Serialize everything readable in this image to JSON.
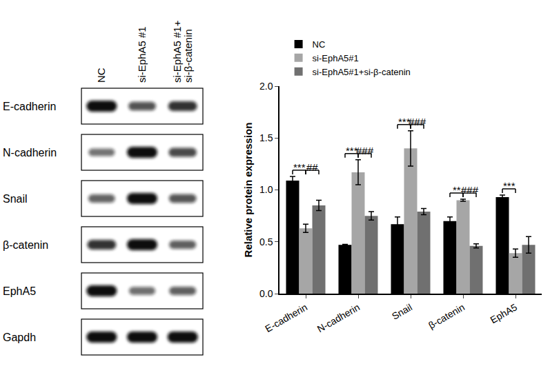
{
  "chart_data": {
    "type": "bar",
    "categories": [
      "E-cadherin",
      "N-cadherin",
      "Snail",
      "β-catenin",
      "EphA5"
    ],
    "series": [
      {
        "name": "NC",
        "color": "#000000",
        "values": [
          1.09,
          0.47,
          0.67,
          0.7,
          0.93
        ],
        "errors": [
          0.04,
          0.005,
          0.07,
          0.04,
          0.02
        ]
      },
      {
        "name": "si-EphA5#1",
        "color": "#a6a6a6",
        "values": [
          0.63,
          1.17,
          1.4,
          0.9,
          0.39
        ],
        "errors": [
          0.04,
          0.12,
          0.17,
          0.01,
          0.04
        ]
      },
      {
        "name": "si-EphA5#1+si-β-catenin",
        "color": "#707070",
        "values": [
          0.85,
          0.75,
          0.79,
          0.46,
          0.47
        ],
        "errors": [
          0.05,
          0.04,
          0.03,
          0.02,
          0.08
        ]
      }
    ],
    "y_label": "Relative protein expression",
    "ylim": [
      0,
      2
    ],
    "yticks": [
      {
        "value": 0,
        "label": "0.0"
      },
      {
        "value": 0.5,
        "label": "0.5"
      },
      {
        "value": 1,
        "label": "1.0"
      },
      {
        "value": 1.5,
        "label": "1.5"
      },
      {
        "value": 2,
        "label": "2.0"
      }
    ],
    "grid": false,
    "legend": "upper left",
    "annotations": [
      {
        "category": "E-cadherin",
        "text": "***",
        "between": [
          "NC",
          "si-EphA5#1"
        ]
      },
      {
        "category": "E-cadherin",
        "text": "##",
        "between": [
          "si-EphA5#1",
          "si-EphA5#1+si-β-catenin"
        ]
      },
      {
        "category": "N-cadherin",
        "text": "***",
        "between": [
          "NC",
          "si-EphA5#1"
        ]
      },
      {
        "category": "N-cadherin",
        "text": "###",
        "between": [
          "si-EphA5#1",
          "si-EphA5#1+si-β-catenin"
        ]
      },
      {
        "category": "Snail",
        "text": "***",
        "between": [
          "NC",
          "si-EphA5#1"
        ]
      },
      {
        "category": "Snail",
        "text": "###",
        "between": [
          "si-EphA5#1",
          "si-EphA5#1+si-β-catenin"
        ]
      },
      {
        "category": "β-catenin",
        "text": "**",
        "between": [
          "NC",
          "si-EphA5#1"
        ]
      },
      {
        "category": "β-catenin",
        "text": "###",
        "between": [
          "si-EphA5#1",
          "si-EphA5#1+si-β-catenin"
        ]
      },
      {
        "category": "EphA5",
        "text": "***",
        "between": [
          "NC",
          "si-EphA5#1"
        ]
      }
    ]
  },
  "blot": {
    "columns": [
      [
        "NC"
      ],
      [
        "si-EphA5 #1"
      ],
      [
        "si-EphA5 #1+",
        "si-β-catenin"
      ]
    ],
    "rows": [
      "E-cadherin",
      "N-cadherin",
      "Snail",
      "β-catenin",
      "EphA5",
      "Gapdh"
    ]
  }
}
